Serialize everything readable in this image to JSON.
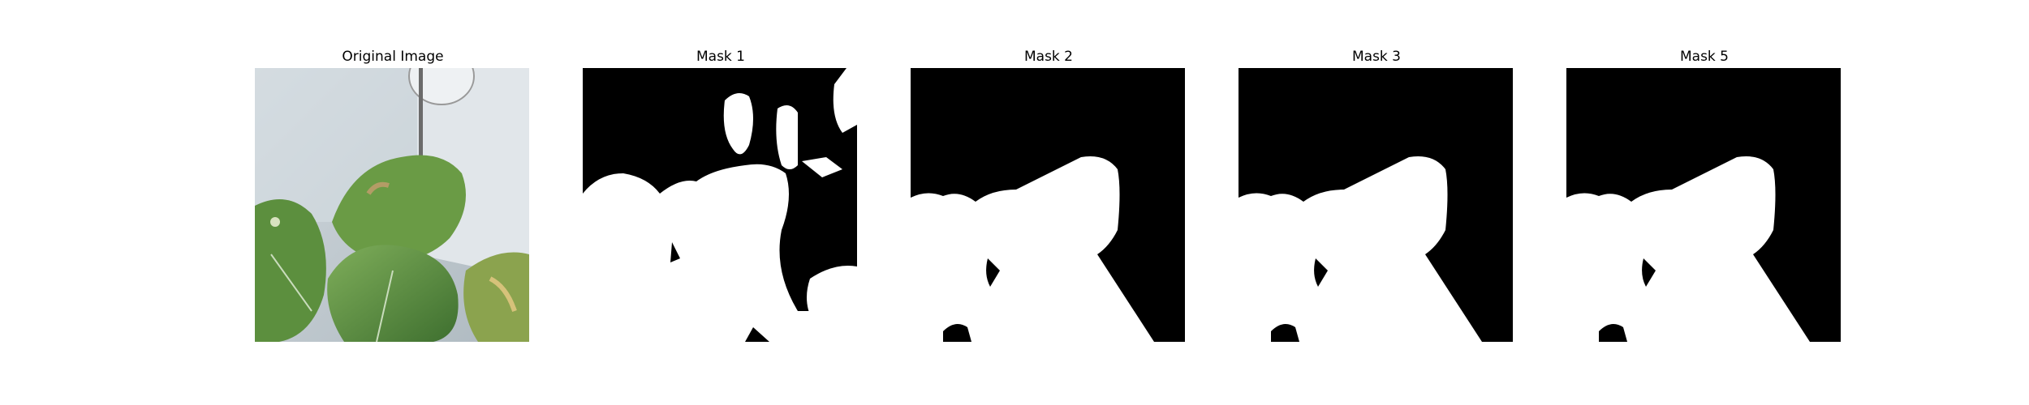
{
  "figure": {
    "panels": [
      {
        "title": "Original Image",
        "kind": "photo"
      },
      {
        "title": "Mask 1",
        "kind": "mask"
      },
      {
        "title": "Mask 2",
        "kind": "mask"
      },
      {
        "title": "Mask 3",
        "kind": "mask"
      },
      {
        "title": "Mask 5",
        "kind": "mask"
      }
    ]
  },
  "colors": {
    "mask_background": "#000000",
    "mask_foreground": "#ffffff",
    "photo_wall": "#c9d2d9",
    "leaf_green": "#4f8a3d"
  }
}
